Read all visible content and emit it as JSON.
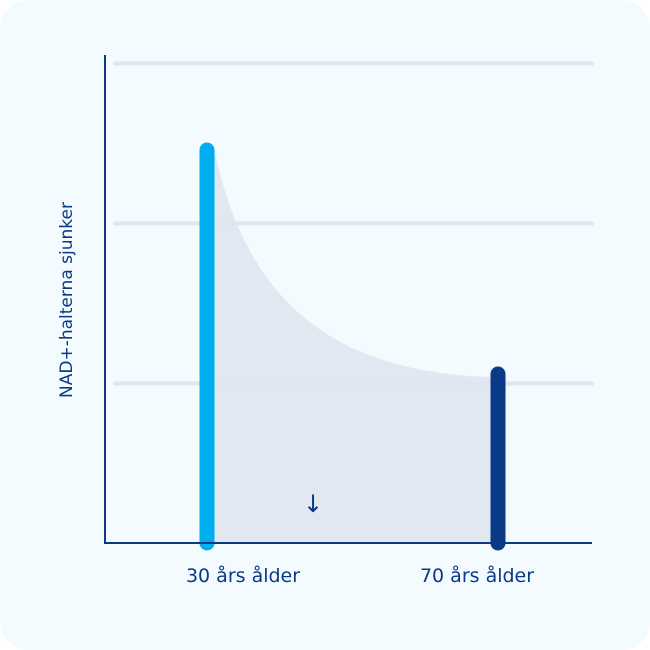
{
  "chart_data": {
    "type": "bar",
    "title": "",
    "ylabel": "NAD+-halterna sjunker",
    "xlabel": "",
    "categories": [
      "30 års ålder",
      "70 års ålder"
    ],
    "values": [
      2.5,
      1.1
    ],
    "ylim": [
      0,
      3
    ],
    "grid": true,
    "gridlines": [
      1,
      2,
      3
    ],
    "colors": [
      "#00aeef",
      "#0a3a87"
    ],
    "axis_color": "#0a3a87",
    "area_fill": "#dfe6f1",
    "annotation": "↓",
    "curve": "exponential decay between bars, shaded"
  }
}
